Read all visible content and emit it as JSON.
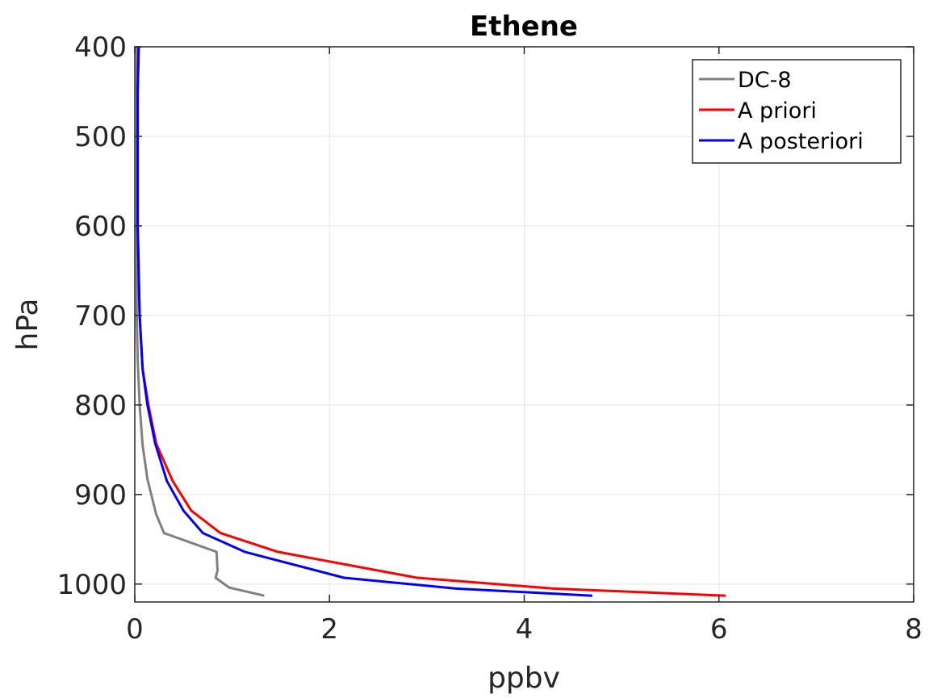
{
  "chart_data": {
    "type": "line",
    "title": "Ethene",
    "xlabel": "ppbv",
    "ylabel": "hPa",
    "xlim": [
      0,
      8
    ],
    "ylim": [
      400,
      1020
    ],
    "y_reversed": true,
    "x_ticks": [
      0,
      2,
      4,
      6,
      8
    ],
    "y_ticks": [
      400,
      500,
      600,
      700,
      800,
      900,
      1000
    ],
    "grid": true,
    "legend_position": "top-right",
    "series": [
      {
        "name": "DC-8",
        "color": "#808080",
        "points": [
          {
            "x": 0.02,
            "y": 400
          },
          {
            "x": 0.02,
            "y": 450
          },
          {
            "x": 0.02,
            "y": 500
          },
          {
            "x": 0.02,
            "y": 550
          },
          {
            "x": 0.02,
            "y": 600
          },
          {
            "x": 0.02,
            "y": 650
          },
          {
            "x": 0.02,
            "y": 700
          },
          {
            "x": 0.03,
            "y": 750
          },
          {
            "x": 0.05,
            "y": 800
          },
          {
            "x": 0.08,
            "y": 845
          },
          {
            "x": 0.13,
            "y": 883
          },
          {
            "x": 0.22,
            "y": 922
          },
          {
            "x": 0.3,
            "y": 943
          },
          {
            "x": 0.84,
            "y": 964
          },
          {
            "x": 0.85,
            "y": 985
          },
          {
            "x": 0.83,
            "y": 993
          },
          {
            "x": 0.97,
            "y": 1004
          },
          {
            "x": 1.33,
            "y": 1013
          }
        ]
      },
      {
        "name": "A priori",
        "color": "#ff0000",
        "points": [
          {
            "x": 0.04,
            "y": 400
          },
          {
            "x": 0.03,
            "y": 450
          },
          {
            "x": 0.03,
            "y": 500
          },
          {
            "x": 0.03,
            "y": 550
          },
          {
            "x": 0.03,
            "y": 600
          },
          {
            "x": 0.04,
            "y": 650
          },
          {
            "x": 0.05,
            "y": 700
          },
          {
            "x": 0.08,
            "y": 760
          },
          {
            "x": 0.14,
            "y": 800
          },
          {
            "x": 0.22,
            "y": 843
          },
          {
            "x": 0.39,
            "y": 885
          },
          {
            "x": 0.58,
            "y": 918
          },
          {
            "x": 0.88,
            "y": 943
          },
          {
            "x": 1.47,
            "y": 964
          },
          {
            "x": 2.9,
            "y": 993
          },
          {
            "x": 4.3,
            "y": 1005
          },
          {
            "x": 6.07,
            "y": 1013
          }
        ]
      },
      {
        "name": "A posteriori",
        "color": "#0000ff",
        "points": [
          {
            "x": 0.04,
            "y": 400
          },
          {
            "x": 0.03,
            "y": 450
          },
          {
            "x": 0.03,
            "y": 500
          },
          {
            "x": 0.03,
            "y": 550
          },
          {
            "x": 0.03,
            "y": 600
          },
          {
            "x": 0.04,
            "y": 650
          },
          {
            "x": 0.05,
            "y": 700
          },
          {
            "x": 0.08,
            "y": 760
          },
          {
            "x": 0.13,
            "y": 800
          },
          {
            "x": 0.21,
            "y": 843
          },
          {
            "x": 0.33,
            "y": 885
          },
          {
            "x": 0.5,
            "y": 918
          },
          {
            "x": 0.7,
            "y": 943
          },
          {
            "x": 1.13,
            "y": 964
          },
          {
            "x": 2.15,
            "y": 993
          },
          {
            "x": 3.3,
            "y": 1005
          },
          {
            "x": 4.7,
            "y": 1013
          }
        ]
      }
    ]
  }
}
